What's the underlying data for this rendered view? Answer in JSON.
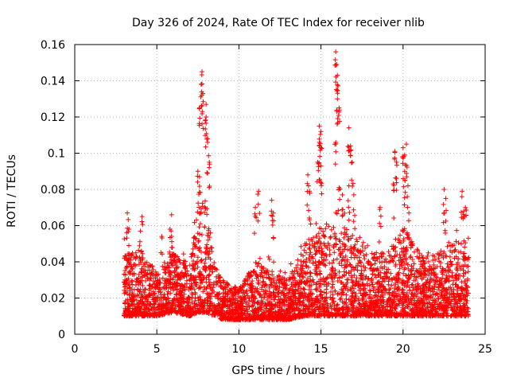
{
  "chart_data": {
    "type": "scatter",
    "title": "Day 326 of 2024, Rate Of TEC Index for receiver nlib",
    "xlabel": "GPS time / hours",
    "ylabel": "ROTI / TECUs",
    "xlim": [
      0,
      25
    ],
    "ylim": [
      0,
      0.16
    ],
    "x_ticks": [
      0,
      5,
      10,
      15,
      20,
      25
    ],
    "x_tick_labels": [
      "0",
      "5",
      "10",
      "15",
      "20",
      "25"
    ],
    "y_ticks": [
      0,
      0.02,
      0.04,
      0.06,
      0.08,
      0.1,
      0.12,
      0.14,
      0.16
    ],
    "y_tick_labels": [
      "0",
      "0.02",
      "0.04",
      "0.06",
      "0.08",
      "0.1",
      "0.12",
      "0.14",
      "0.16"
    ],
    "grid": true,
    "marker": "+",
    "marker_color": "#ff0000",
    "series": [
      {
        "name": "ROTI",
        "x_range": [
          3.0,
          24.0
        ],
        "envelope": [
          {
            "t": 3.0,
            "base": 0.01,
            "top": 0.045
          },
          {
            "t": 4.0,
            "base": 0.01,
            "top": 0.045
          },
          {
            "t": 5.0,
            "base": 0.01,
            "top": 0.035
          },
          {
            "t": 6.0,
            "base": 0.012,
            "top": 0.045
          },
          {
            "t": 7.0,
            "base": 0.01,
            "top": 0.04
          },
          {
            "t": 7.5,
            "base": 0.012,
            "top": 0.07
          },
          {
            "t": 8.0,
            "base": 0.012,
            "top": 0.075
          },
          {
            "t": 8.5,
            "base": 0.01,
            "top": 0.04
          },
          {
            "t": 9.0,
            "base": 0.008,
            "top": 0.03
          },
          {
            "t": 10.0,
            "base": 0.008,
            "top": 0.025
          },
          {
            "t": 11.0,
            "base": 0.008,
            "top": 0.04
          },
          {
            "t": 12.0,
            "base": 0.008,
            "top": 0.035
          },
          {
            "t": 13.0,
            "base": 0.008,
            "top": 0.03
          },
          {
            "t": 14.0,
            "base": 0.01,
            "top": 0.05
          },
          {
            "t": 15.0,
            "base": 0.01,
            "top": 0.06
          },
          {
            "t": 16.0,
            "base": 0.01,
            "top": 0.065
          },
          {
            "t": 17.0,
            "base": 0.01,
            "top": 0.055
          },
          {
            "t": 18.0,
            "base": 0.01,
            "top": 0.045
          },
          {
            "t": 19.0,
            "base": 0.01,
            "top": 0.045
          },
          {
            "t": 20.0,
            "base": 0.01,
            "top": 0.06
          },
          {
            "t": 21.0,
            "base": 0.01,
            "top": 0.045
          },
          {
            "t": 22.0,
            "base": 0.01,
            "top": 0.045
          },
          {
            "t": 23.0,
            "base": 0.01,
            "top": 0.05
          },
          {
            "t": 24.0,
            "base": 0.01,
            "top": 0.05
          }
        ],
        "peaks": [
          {
            "x": 3.2,
            "y": 0.067
          },
          {
            "x": 3.3,
            "y": 0.058
          },
          {
            "x": 4.1,
            "y": 0.065
          },
          {
            "x": 4.0,
            "y": 0.057
          },
          {
            "x": 5.3,
            "y": 0.054
          },
          {
            "x": 5.8,
            "y": 0.058
          },
          {
            "x": 5.9,
            "y": 0.066
          },
          {
            "x": 7.6,
            "y": 0.125
          },
          {
            "x": 7.7,
            "y": 0.138
          },
          {
            "x": 7.75,
            "y": 0.145
          },
          {
            "x": 7.8,
            "y": 0.133
          },
          {
            "x": 8.0,
            "y": 0.127
          },
          {
            "x": 8.1,
            "y": 0.108
          },
          {
            "x": 8.0,
            "y": 0.12
          },
          {
            "x": 7.5,
            "y": 0.09
          },
          {
            "x": 7.6,
            "y": 0.087
          },
          {
            "x": 8.2,
            "y": 0.095
          },
          {
            "x": 11.2,
            "y": 0.079
          },
          {
            "x": 11.0,
            "y": 0.07
          },
          {
            "x": 12.0,
            "y": 0.074
          },
          {
            "x": 12.1,
            "y": 0.067
          },
          {
            "x": 14.2,
            "y": 0.088
          },
          {
            "x": 14.3,
            "y": 0.079
          },
          {
            "x": 14.8,
            "y": 0.095
          },
          {
            "x": 14.9,
            "y": 0.115
          },
          {
            "x": 15.0,
            "y": 0.112
          },
          {
            "x": 14.9,
            "y": 0.104
          },
          {
            "x": 15.0,
            "y": 0.093
          },
          {
            "x": 15.9,
            "y": 0.156
          },
          {
            "x": 15.95,
            "y": 0.149
          },
          {
            "x": 16.0,
            "y": 0.143
          },
          {
            "x": 16.0,
            "y": 0.13
          },
          {
            "x": 16.1,
            "y": 0.125
          },
          {
            "x": 15.9,
            "y": 0.106
          },
          {
            "x": 16.1,
            "y": 0.081
          },
          {
            "x": 16.3,
            "y": 0.077
          },
          {
            "x": 16.7,
            "y": 0.114
          },
          {
            "x": 16.8,
            "y": 0.104
          },
          {
            "x": 16.9,
            "y": 0.095
          },
          {
            "x": 16.7,
            "y": 0.082
          },
          {
            "x": 17.0,
            "y": 0.077
          },
          {
            "x": 18.6,
            "y": 0.07
          },
          {
            "x": 19.5,
            "y": 0.101
          },
          {
            "x": 19.6,
            "y": 0.095
          },
          {
            "x": 19.4,
            "y": 0.083
          },
          {
            "x": 20.0,
            "y": 0.103
          },
          {
            "x": 20.1,
            "y": 0.099
          },
          {
            "x": 20.2,
            "y": 0.105
          },
          {
            "x": 20.1,
            "y": 0.09
          },
          {
            "x": 20.3,
            "y": 0.082
          },
          {
            "x": 22.5,
            "y": 0.08
          },
          {
            "x": 22.6,
            "y": 0.075
          },
          {
            "x": 23.6,
            "y": 0.079
          },
          {
            "x": 23.8,
            "y": 0.07
          },
          {
            "x": 23.7,
            "y": 0.068
          }
        ]
      }
    ]
  }
}
